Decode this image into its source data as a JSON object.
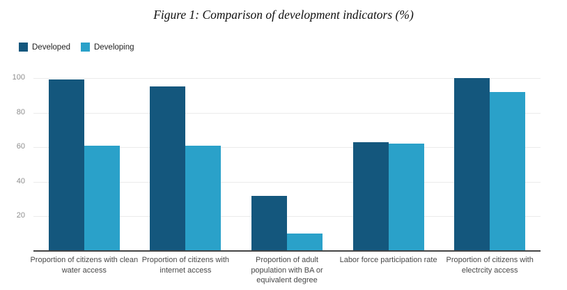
{
  "title": "Figure 1: Comparison of development indicators (%)",
  "chart_data": {
    "type": "bar",
    "title": "Figure 1: Comparison of development indicators (%)",
    "categories": [
      "Proportion of citizens with clean water access",
      "Proportion of citizens with internet access",
      "Proportion of adult population with BA or equivalent degree",
      "Labor force participation rate",
      "Proportion of citizens with electrcity access"
    ],
    "series": [
      {
        "name": "Developed",
        "color": "#14577d",
        "values": [
          99,
          95,
          32,
          63,
          100
        ]
      },
      {
        "name": "Developing",
        "color": "#2aa1c9",
        "values": [
          61,
          61,
          10,
          62,
          92
        ]
      }
    ],
    "xlabel": "",
    "ylabel": "",
    "ylim": [
      0,
      100
    ],
    "yticks": [
      20,
      40,
      60,
      80,
      100
    ],
    "grid": true,
    "legend_position": "top-left"
  },
  "colors": {
    "developed": "#14577d",
    "developing": "#2aa1c9",
    "gridline": "#ebebeb",
    "axis_line": "#454545",
    "tick_text": "#8e8e8e",
    "category_text": "#484848",
    "background": "#ffffff"
  }
}
